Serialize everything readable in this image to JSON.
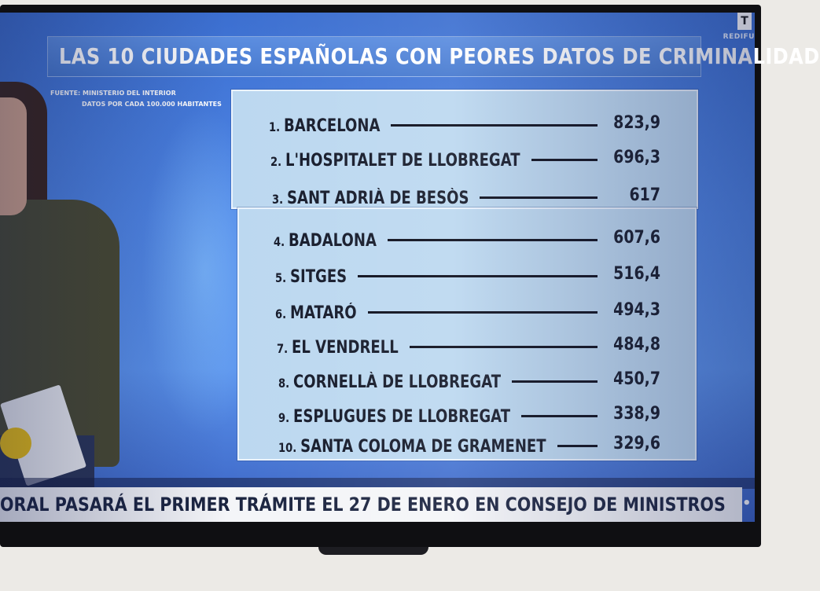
{
  "channel": {
    "logo_mark": "T",
    "logo_text": "REDIFU"
  },
  "title": "LAS 10 CIUDADES ESPAÑOLAS CON PEORES DATOS DE CRIMINALIDAD",
  "source_line1": "FUENTE: MINISTERIO DEL INTERIOR",
  "source_line2": "DATOS POR CADA 100.000 HABITANTES",
  "ranking": [
    {
      "num": "1.",
      "city": "BARCELONA",
      "value": "823,9"
    },
    {
      "num": "2.",
      "city": "L'HOSPITALET DE LLOBREGAT",
      "value": "696,3"
    },
    {
      "num": "3.",
      "city": "SANT ADRIÀ DE BESÒS",
      "value": "617"
    },
    {
      "num": "4.",
      "city": "BADALONA",
      "value": "607,6"
    },
    {
      "num": "5.",
      "city": "SITGES",
      "value": "516,4"
    },
    {
      "num": "6.",
      "city": "MATARÓ",
      "value": "494,3"
    },
    {
      "num": "7.",
      "city": "EL VENDRELL",
      "value": "484,8"
    },
    {
      "num": "8.",
      "city": "CORNELLÀ DE LLOBREGAT",
      "value": "450,7"
    },
    {
      "num": "9.",
      "city": "ESPLUGUES DE LLOBREGAT",
      "value": "338,9"
    },
    {
      "num": "10.",
      "city": "SANTA COLOMA DE GRAMENET",
      "value": "329,6"
    }
  ],
  "ticker": "ORAL PASARÁ EL PRIMER TRÁMITE EL 27 DE ENERO EN CONSEJO DE MINISTROS",
  "ticker_separator": "•",
  "colors": {
    "accent_blue": "#4f86e6",
    "panel": "#bcd8f0",
    "text_dark": "#151a2a"
  }
}
